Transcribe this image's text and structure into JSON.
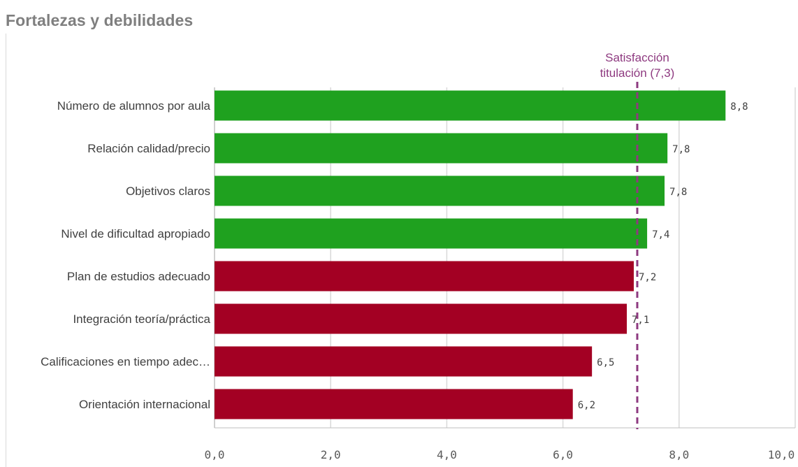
{
  "title": "Fortalezas y debilidades",
  "colors": {
    "strength": "#1fa11f",
    "weakness": "#a30023",
    "reference": "#8e3a80",
    "grid": "#d9d9d9",
    "axis": "#bfbfbf"
  },
  "chart_data": {
    "type": "bar",
    "orientation": "horizontal",
    "title": "Fortalezas y debilidades",
    "xlabel": "",
    "ylabel": "",
    "xlim": [
      0,
      10
    ],
    "x_ticks": [
      "0,0",
      "2,0",
      "4,0",
      "6,0",
      "8,0",
      "10,0"
    ],
    "x_tick_values": [
      0,
      2,
      4,
      6,
      8,
      10
    ],
    "grid": true,
    "categories": [
      "Número de alumnos por aula",
      "Relación calidad/precio",
      "Objetivos claros",
      "Nivel de dificultad apropiado",
      "Plan de estudios adecuado",
      "Integración teoría/práctica",
      "Calificaciones en tiempo adec…",
      "Orientación internacional"
    ],
    "values": [
      8.8,
      7.8,
      7.75,
      7.45,
      7.22,
      7.1,
      6.5,
      6.17
    ],
    "value_labels": [
      "8,8",
      "7,8",
      "7,8",
      "7,4",
      "7,2",
      "7,1",
      "6,5",
      "6,2"
    ],
    "groups": [
      "strength",
      "strength",
      "strength",
      "strength",
      "weakness",
      "weakness",
      "weakness",
      "weakness"
    ],
    "reference_line": {
      "value": 7.28,
      "label_lines": [
        "Satisfacción",
        "titulación (7,3)"
      ]
    }
  }
}
